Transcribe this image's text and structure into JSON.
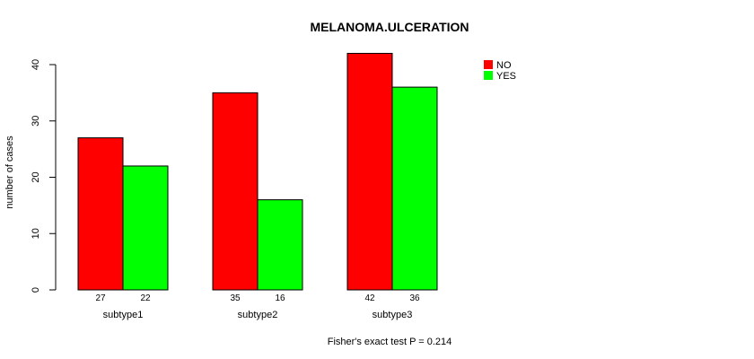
{
  "chart_data": {
    "type": "bar",
    "title": "MELANOMA.ULCERATION",
    "xlabel": "",
    "ylabel": "number of cases",
    "footnote": "Fisher's exact test P = 0.214",
    "categories": [
      "subtype1",
      "subtype2",
      "subtype3"
    ],
    "series": [
      {
        "name": "NO",
        "color": "#ff0000",
        "values": [
          27,
          35,
          42
        ]
      },
      {
        "name": "YES",
        "color": "#00ff00",
        "values": [
          22,
          16,
          36
        ]
      }
    ],
    "ylim": [
      0,
      40
    ],
    "yticks": [
      0,
      10,
      20,
      30,
      40
    ],
    "value_labels": [
      [
        "27",
        "22"
      ],
      [
        "35",
        "16"
      ],
      [
        "42",
        "36"
      ]
    ],
    "legend_position": "top-right",
    "grid": false
  }
}
